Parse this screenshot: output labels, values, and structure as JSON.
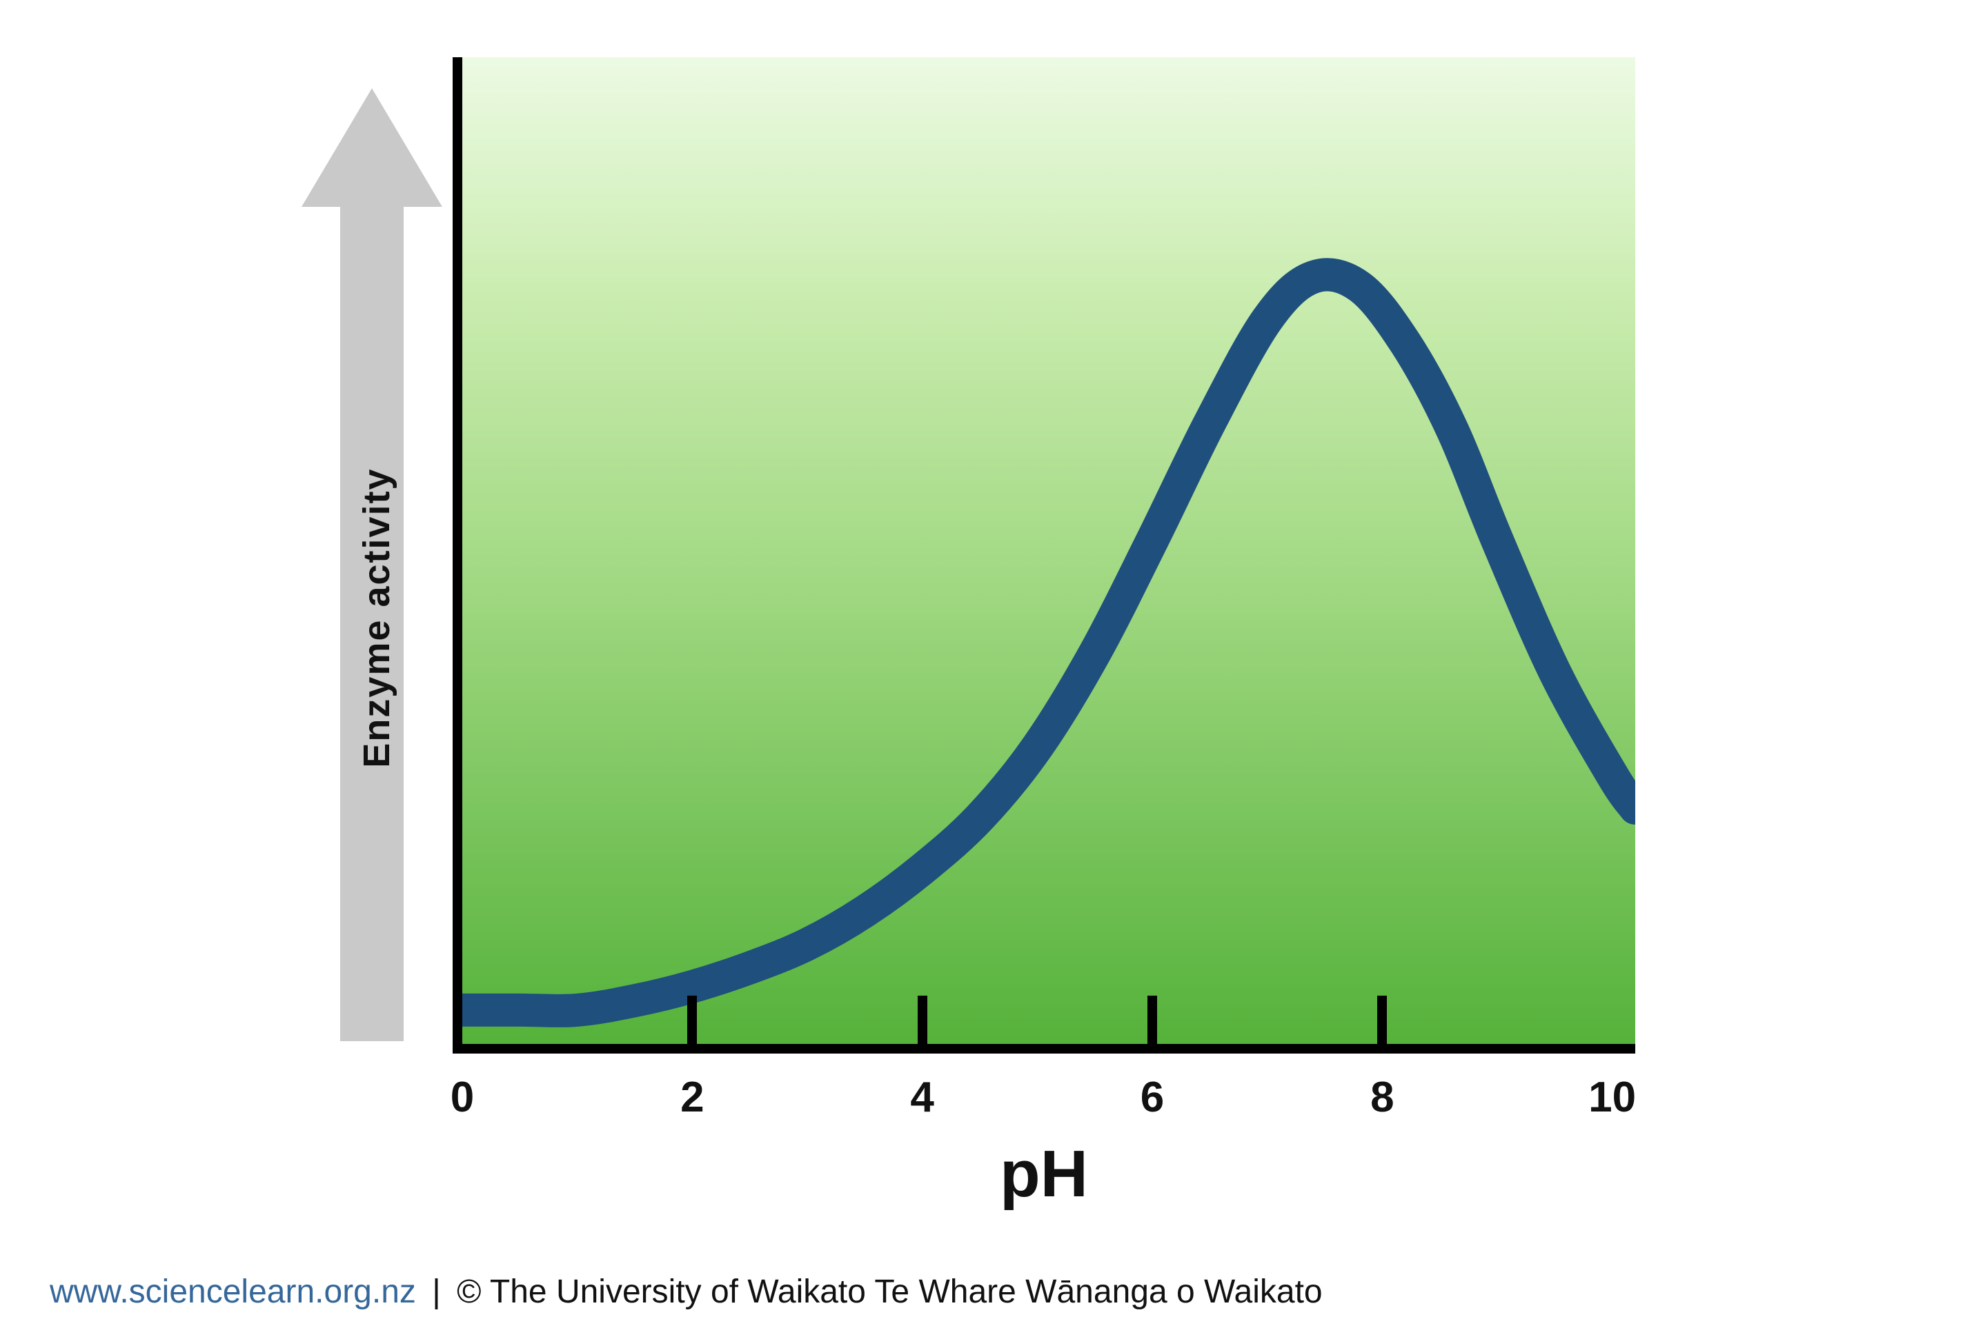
{
  "chart_data": {
    "type": "line",
    "title": "",
    "xlabel": "pH",
    "ylabel": "Enzyme activity",
    "x": [
      0,
      0.5,
      1,
      1.5,
      2,
      2.5,
      3,
      3.5,
      4,
      4.5,
      5,
      5.5,
      6,
      6.5,
      7,
      7.4,
      7.8,
      8.2,
      8.6,
      9,
      9.5,
      10,
      10.2
    ],
    "values": [
      0.02,
      0.02,
      0.02,
      0.03,
      0.045,
      0.065,
      0.09,
      0.125,
      0.17,
      0.225,
      0.3,
      0.4,
      0.52,
      0.645,
      0.755,
      0.8,
      0.79,
      0.73,
      0.64,
      0.52,
      0.38,
      0.27,
      0.235
    ],
    "xlim": [
      0,
      10.2
    ],
    "ylim": [
      0,
      1.05
    ],
    "xticks": [
      0,
      2,
      4,
      6,
      8,
      10
    ],
    "tick_marks": [
      2,
      4,
      6,
      8
    ],
    "grid": false,
    "legend": "none",
    "line_color": "#1f4f7d",
    "line_width": 48,
    "baseline_offset": 0.016,
    "background_top_color": "#ecfae3",
    "background_bottom_color": "#55b23a",
    "axis_color": "#000000",
    "arrow_color": "#c9c9c9"
  },
  "footer": {
    "link": "www.sciencelearn.org.nz",
    "separator": "|",
    "credit": "© The University of Waikato Te Whare Wānanga o Waikato"
  }
}
